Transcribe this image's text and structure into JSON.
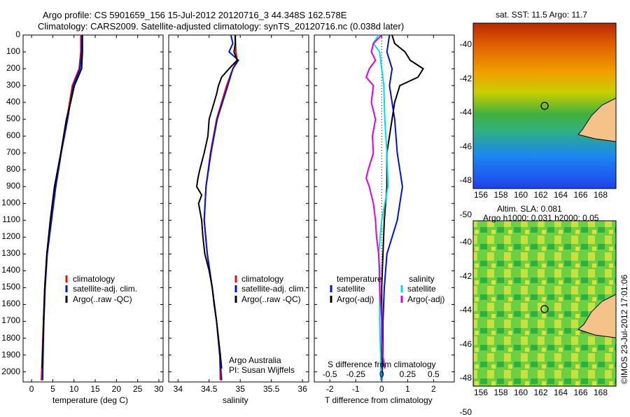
{
  "title_line1": "Argo profile: CS 5901659_156 15-Jul-2012 20120716_3 44.348S 162.578E",
  "title_line2": "Climatology: CARS2009. Satellite-adjusted climatology: synTS_20120716.nc (0.038d later)",
  "credits": {
    "line1": "Argo Australia",
    "line2": "PI: Susan Wijffels",
    "stamp": "©IMOS 23-Jul-2012 17:01:06"
  },
  "depth_ticks": [
    "0",
    "100",
    "200",
    "300",
    "400",
    "500",
    "600",
    "700",
    "800",
    "900",
    "1000",
    "1100",
    "1200",
    "1300",
    "1400",
    "1500",
    "1600",
    "1700",
    "1800",
    "1900",
    "2000"
  ],
  "colors": {
    "climatology": "#e01010",
    "satellite": "#0010e0",
    "argo": "#000000",
    "sat_salinity": "#00e0e0",
    "argo_salinity": "#e000e0"
  },
  "chart_data": [
    {
      "type": "line",
      "xlabel": "temperature (deg C)",
      "xticks": [
        "0",
        "5",
        "10",
        "15",
        "20",
        "25",
        "30"
      ],
      "xlim": [
        -2,
        31
      ],
      "ylim": [
        2060,
        0
      ],
      "legend": [
        "climatology",
        "satellite-adj. clim.",
        "Argo(..raw -QC)"
      ],
      "series": [
        {
          "name": "climatology",
          "depth": [
            0,
            100,
            200,
            300,
            500,
            700,
            900,
            1100,
            1300,
            1500,
            1700,
            1900,
            2050
          ],
          "values": [
            11.6,
            11.6,
            11.2,
            9.6,
            8.3,
            6.9,
            5.6,
            4.5,
            3.6,
            3.1,
            2.8,
            2.5,
            2.3
          ]
        },
        {
          "name": "satellite-adj. clim.",
          "depth": [
            0,
            100,
            200,
            300,
            500,
            700,
            900,
            1100,
            1300,
            1500,
            1700,
            1900,
            2050
          ],
          "values": [
            11.9,
            11.8,
            11.4,
            9.8,
            8.5,
            7.0,
            5.7,
            4.7,
            3.7,
            3.2,
            2.9,
            2.7,
            2.6
          ]
        },
        {
          "name": "Argo(..raw -QC)",
          "depth": [
            0,
            100,
            200,
            300,
            400,
            500,
            700,
            900,
            1100,
            1300,
            1500,
            1700,
            1900,
            1980
          ],
          "values": [
            12.0,
            12.0,
            11.8,
            10.1,
            9.2,
            8.2,
            6.9,
            5.4,
            4.4,
            3.6,
            3.1,
            2.8,
            2.6,
            2.5
          ]
        }
      ]
    },
    {
      "type": "line",
      "xlabel": "salinity",
      "xticks": [
        "34",
        "34.5",
        "35",
        "35.5",
        "36"
      ],
      "xlim": [
        33.85,
        36.1
      ],
      "ylim": [
        2060,
        0
      ],
      "legend": [
        "climatology",
        "satellite-adj. clim.",
        "Argo(..raw -QC)"
      ],
      "series": [
        {
          "name": "climatology",
          "depth": [
            0,
            100,
            150,
            200,
            300,
            500,
            700,
            900,
            1100,
            1300,
            1500,
            1700,
            1900,
            2050
          ],
          "values": [
            34.92,
            34.93,
            34.95,
            34.88,
            34.78,
            34.62,
            34.52,
            34.45,
            34.42,
            34.47,
            34.55,
            34.62,
            34.67,
            34.68
          ]
        },
        {
          "name": "satellite-adj. clim.",
          "depth": [
            0,
            50,
            100,
            150,
            200,
            300,
            500,
            700,
            900,
            1100,
            1300,
            1500,
            1700,
            1900,
            2050
          ],
          "values": [
            34.85,
            34.88,
            34.82,
            34.97,
            34.88,
            34.8,
            34.63,
            34.53,
            34.45,
            34.42,
            34.47,
            34.55,
            34.62,
            34.67,
            34.7
          ]
        },
        {
          "name": "Argo(..raw -QC)",
          "depth": [
            0,
            50,
            100,
            150,
            200,
            250,
            300,
            350,
            400,
            500,
            600,
            700,
            800,
            850,
            900,
            950,
            1000,
            1100,
            1200,
            1300,
            1400,
            1500,
            1600,
            1700,
            1800,
            1900,
            1980
          ],
          "values": [
            34.92,
            34.92,
            34.9,
            34.95,
            34.82,
            34.7,
            34.65,
            34.62,
            34.58,
            34.5,
            34.48,
            34.42,
            34.35,
            34.32,
            34.3,
            34.38,
            34.33,
            34.38,
            34.4,
            34.43,
            34.5,
            34.55,
            34.58,
            34.62,
            34.65,
            34.68,
            34.7
          ]
        }
      ]
    },
    {
      "type": "line",
      "xlabel": "T difference from climatology",
      "xlabel2": "S difference from climatology",
      "xticks": [
        "-2",
        "-1",
        "0",
        "1",
        "2"
      ],
      "xticks2": [
        "-0.5",
        "-0.25",
        "0",
        "0.25",
        "0.5"
      ],
      "xlim": [
        -2.6,
        2.8
      ],
      "ylim": [
        2060,
        0
      ],
      "legend_temp_header": "temperature",
      "legend_sal_header": "salinity",
      "legend": [
        "satellite",
        "Argo(-adj)",
        "satellite",
        "Argo(-adj)"
      ],
      "series": [
        {
          "name": "temperature satellite",
          "depth": [
            0,
            100,
            200,
            300,
            500,
            700,
            900,
            1100,
            1300,
            1500,
            1700,
            1900,
            2050
          ],
          "values": [
            0.3,
            0.2,
            0.4,
            0.3,
            0.5,
            0.6,
            0.8,
            0.6,
            0.2,
            0.1,
            0.05,
            0.05,
            0.0
          ]
        },
        {
          "name": "temperature Argo(-adj)",
          "depth": [
            0,
            50,
            100,
            150,
            200,
            250,
            300,
            400,
            500,
            600,
            700,
            900,
            1100,
            1300,
            1500,
            1700,
            1900,
            1980
          ],
          "values": [
            0.4,
            0.5,
            0.9,
            1.1,
            1.6,
            1.4,
            0.7,
            0.5,
            0.4,
            0.3,
            0.2,
            0.2,
            0.1,
            0.05,
            0.0,
            0.0,
            0.0,
            0.0
          ]
        },
        {
          "name": "salinity satellite",
          "depth": [
            0,
            50,
            100,
            200,
            300,
            500,
            700,
            900,
            1100,
            1300,
            1500,
            1700,
            1900,
            2050
          ],
          "values": [
            -0.03,
            -0.08,
            -0.02,
            0.0,
            0.02,
            0.03,
            0.05,
            0.06,
            0.0,
            -0.03,
            -0.02,
            -0.02,
            -0.01,
            -0.01
          ]
        },
        {
          "name": "salinity Argo(-adj)",
          "depth": [
            0,
            50,
            100,
            150,
            200,
            250,
            300,
            400,
            500,
            600,
            700,
            800,
            850,
            900,
            1000,
            1100,
            1200,
            1300,
            1400,
            1500,
            1600,
            1700,
            1800,
            1900,
            1980
          ],
          "values": [
            0.0,
            -0.08,
            -0.1,
            -0.06,
            -0.12,
            -0.15,
            -0.08,
            -0.1,
            -0.06,
            -0.09,
            -0.08,
            -0.13,
            -0.15,
            -0.12,
            -0.08,
            -0.06,
            -0.05,
            -0.03,
            -0.02,
            -0.02,
            -0.01,
            0.0,
            0.0,
            0.01,
            0.03
          ]
        }
      ]
    }
  ],
  "map_top": {
    "title": "sat. SST: 11.5 Argo: 11.7",
    "xticks": [
      "156",
      "158",
      "160",
      "162",
      "164",
      "166",
      "168"
    ],
    "yticks": [
      "-40",
      "-42",
      "-44",
      "-46",
      "-48",
      "-50"
    ]
  },
  "map_bottom": {
    "title1": "Altim. SLA: 0.081",
    "title2": "Argo h1000: 0.031 h2000: 0.05",
    "xticks": [
      "156",
      "158",
      "160",
      "162",
      "164",
      "166",
      "168"
    ],
    "yticks": [
      "-40",
      "-42",
      "-44",
      "-46",
      "-48",
      "-50"
    ]
  }
}
